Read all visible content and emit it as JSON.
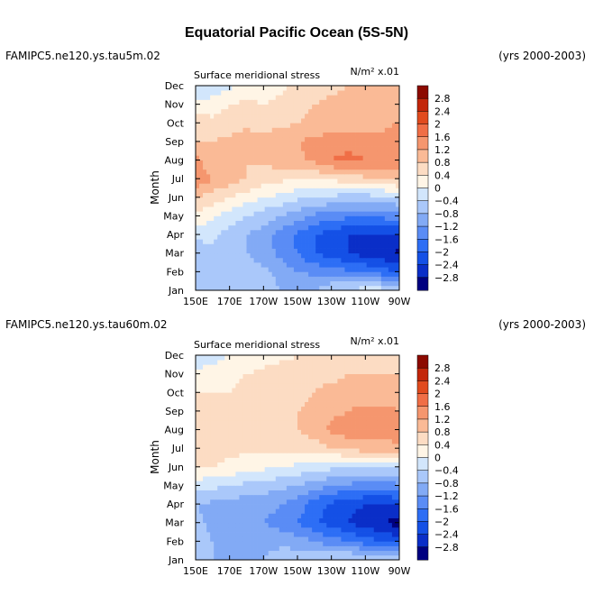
{
  "figure": {
    "title": "Equatorial Pacific Ocean (5S-5N)"
  },
  "chart_data": [
    {
      "type": "heatmap",
      "case_name": "FAMIPC5.ne120.ys.tau5m.02",
      "years_label": "(yrs 2000-2003)",
      "panel_title": "Surface meridional stress",
      "units_label": "N/m² x.01",
      "ylabel": "Month",
      "x_tick_labels": [
        "150E",
        "170E",
        "170W",
        "150W",
        "130W",
        "110W",
        "90W"
      ],
      "x_longitudes": [
        150,
        170,
        190,
        210,
        230,
        250,
        270
      ],
      "y_tick_labels": [
        "Jan",
        "Feb",
        "Mar",
        "Apr",
        "May",
        "Jun",
        "Jul",
        "Aug",
        "Sep",
        "Oct",
        "Nov",
        "Dec"
      ],
      "colorbar_levels": [
        "2.8",
        "2.4",
        "2",
        "1.6",
        "1.2",
        "0.8",
        "0.4",
        "0",
        "-0.4",
        "-0.8",
        "-1.2",
        "-1.6",
        "-2",
        "-2.4",
        "-2.8"
      ],
      "grid_lon": [
        150,
        160,
        170,
        180,
        190,
        200,
        210,
        220,
        230,
        240,
        250,
        260,
        270
      ],
      "grid": [
        [
          -0.8,
          -0.6,
          -0.6,
          -0.4,
          -0.4,
          -0.8,
          -0.8,
          -0.8,
          -0.4,
          -0.3,
          -0.2,
          -0.2,
          -0.3
        ],
        [
          -0.7,
          -0.6,
          -0.6,
          -0.6,
          -0.7,
          -1.0,
          -1.2,
          -1.3,
          -1.4,
          -1.5,
          -1.6,
          -1.8,
          -2.0
        ],
        [
          -0.6,
          -0.5,
          -0.5,
          -0.8,
          -1.0,
          -1.3,
          -1.6,
          -2.0,
          -2.2,
          -2.4,
          -2.6,
          -2.7,
          -2.9
        ],
        [
          -0.3,
          -0.3,
          -0.6,
          -0.8,
          -1.0,
          -1.4,
          -1.7,
          -2.0,
          -2.2,
          -2.4,
          -2.5,
          -2.5,
          -2.4
        ],
        [
          0.3,
          0.1,
          -0.2,
          -0.4,
          -0.6,
          -0.8,
          -1.0,
          -1.3,
          -1.4,
          -1.5,
          -1.5,
          -1.5,
          -1.4
        ],
        [
          0.8,
          0.6,
          0.4,
          0.2,
          0.0,
          -0.1,
          -0.3,
          -0.4,
          -0.5,
          -0.6,
          -0.6,
          -0.5,
          -0.4
        ],
        [
          1.6,
          1.2,
          1.0,
          0.8,
          0.6,
          0.5,
          0.4,
          0.4,
          0.5,
          0.6,
          0.7,
          0.8,
          0.9
        ],
        [
          1.3,
          0.9,
          0.8,
          0.8,
          0.9,
          1.0,
          1.1,
          1.3,
          1.6,
          1.7,
          1.6,
          1.5,
          1.6
        ],
        [
          0.8,
          0.8,
          0.9,
          1.0,
          1.0,
          1.1,
          1.2,
          1.3,
          1.4,
          1.5,
          1.4,
          1.3,
          1.5
        ],
        [
          0.6,
          0.5,
          0.6,
          0.7,
          0.6,
          0.7,
          0.8,
          0.9,
          1.0,
          1.0,
          1.0,
          1.1,
          1.2
        ],
        [
          0.2,
          0.2,
          0.4,
          0.5,
          0.4,
          0.5,
          0.7,
          0.8,
          0.9,
          0.9,
          0.9,
          1.0,
          1.1
        ],
        [
          -0.5,
          -0.3,
          -0.1,
          0.1,
          0.2,
          0.3,
          0.5,
          0.6,
          0.7,
          0.8,
          0.8,
          0.9,
          1.0
        ]
      ]
    },
    {
      "type": "heatmap",
      "case_name": "FAMIPC5.ne120.ys.tau60m.02",
      "years_label": "(yrs 2000-2003)",
      "panel_title": "Surface meridional stress",
      "units_label": "N/m² x.01",
      "ylabel": "Month",
      "x_tick_labels": [
        "150E",
        "170E",
        "170W",
        "150W",
        "130W",
        "110W",
        "90W"
      ],
      "x_longitudes": [
        150,
        170,
        190,
        210,
        230,
        250,
        270
      ],
      "y_tick_labels": [
        "Jan",
        "Feb",
        "Mar",
        "Apr",
        "May",
        "Jun",
        "Jul",
        "Aug",
        "Sep",
        "Oct",
        "Nov",
        "Dec"
      ],
      "colorbar_levels": [
        "2.8",
        "2.4",
        "2",
        "1.6",
        "1.2",
        "0.8",
        "0.4",
        "0",
        "-0.4",
        "-0.8",
        "-1.2",
        "-1.6",
        "-2",
        "-2.4",
        "-2.8"
      ],
      "grid_lon": [
        150,
        160,
        170,
        180,
        190,
        200,
        210,
        220,
        230,
        240,
        250,
        260,
        270
      ],
      "grid": [
        [
          -0.6,
          -0.8,
          -1.0,
          -1.0,
          -0.8,
          -0.6,
          -0.5,
          -0.5,
          -0.4,
          -0.3,
          -0.3,
          -0.4,
          -0.6
        ],
        [
          -0.6,
          -0.8,
          -1.0,
          -1.0,
          -0.9,
          -0.9,
          -1.0,
          -1.2,
          -1.4,
          -1.6,
          -1.8,
          -2.0,
          -2.2
        ],
        [
          -0.7,
          -0.9,
          -1.0,
          -1.1,
          -1.2,
          -1.4,
          -1.6,
          -1.9,
          -2.2,
          -2.4,
          -2.6,
          -2.8,
          -3.0
        ],
        [
          -0.8,
          -0.9,
          -1.0,
          -1.0,
          -1.0,
          -1.2,
          -1.4,
          -1.8,
          -2.1,
          -2.3,
          -2.4,
          -2.4,
          -2.4
        ],
        [
          -0.2,
          -0.3,
          -0.4,
          -0.5,
          -0.6,
          -0.7,
          -0.8,
          -1.0,
          -1.2,
          -1.3,
          -1.4,
          -1.4,
          -1.3
        ],
        [
          0.4,
          0.4,
          0.3,
          0.2,
          0.1,
          0.0,
          -0.1,
          -0.2,
          -0.3,
          -0.4,
          -0.4,
          -0.4,
          -0.4
        ],
        [
          0.6,
          0.6,
          0.5,
          0.5,
          0.5,
          0.5,
          0.6,
          0.6,
          0.8,
          0.9,
          1.0,
          1.0,
          1.1
        ],
        [
          0.6,
          0.6,
          0.6,
          0.6,
          0.6,
          0.7,
          0.8,
          1.0,
          1.3,
          1.4,
          1.5,
          1.5,
          1.4
        ],
        [
          0.6,
          0.5,
          0.5,
          0.5,
          0.6,
          0.7,
          0.8,
          0.9,
          1.1,
          1.2,
          1.3,
          1.3,
          1.2
        ],
        [
          0.4,
          0.4,
          0.4,
          0.5,
          0.6,
          0.7,
          0.7,
          0.8,
          0.9,
          1.0,
          1.0,
          1.0,
          1.0
        ],
        [
          0.2,
          0.2,
          0.3,
          0.4,
          0.5,
          0.6,
          0.6,
          0.7,
          0.7,
          0.8,
          0.8,
          0.8,
          0.8
        ],
        [
          -0.4,
          -0.2,
          0.0,
          0.1,
          0.2,
          0.3,
          0.4,
          0.4,
          0.5,
          0.5,
          0.6,
          0.6,
          0.6
        ]
      ]
    }
  ],
  "palette": {
    "levels": [
      -2.8,
      -2.4,
      -2.0,
      -1.6,
      -1.2,
      -0.8,
      -0.4,
      0.0,
      0.4,
      0.8,
      1.2,
      1.6,
      2.0,
      2.4,
      2.8
    ],
    "colors": [
      "#000080",
      "#0a2ec8",
      "#1450e6",
      "#2d6ef5",
      "#5a8cf5",
      "#82aaf5",
      "#aac8fa",
      "#d2e6fc",
      "#fff5e6",
      "#fcdcc3",
      "#faba96",
      "#f5966e",
      "#f06e46",
      "#e14b1e",
      "#c3260a",
      "#8c0a00"
    ]
  }
}
